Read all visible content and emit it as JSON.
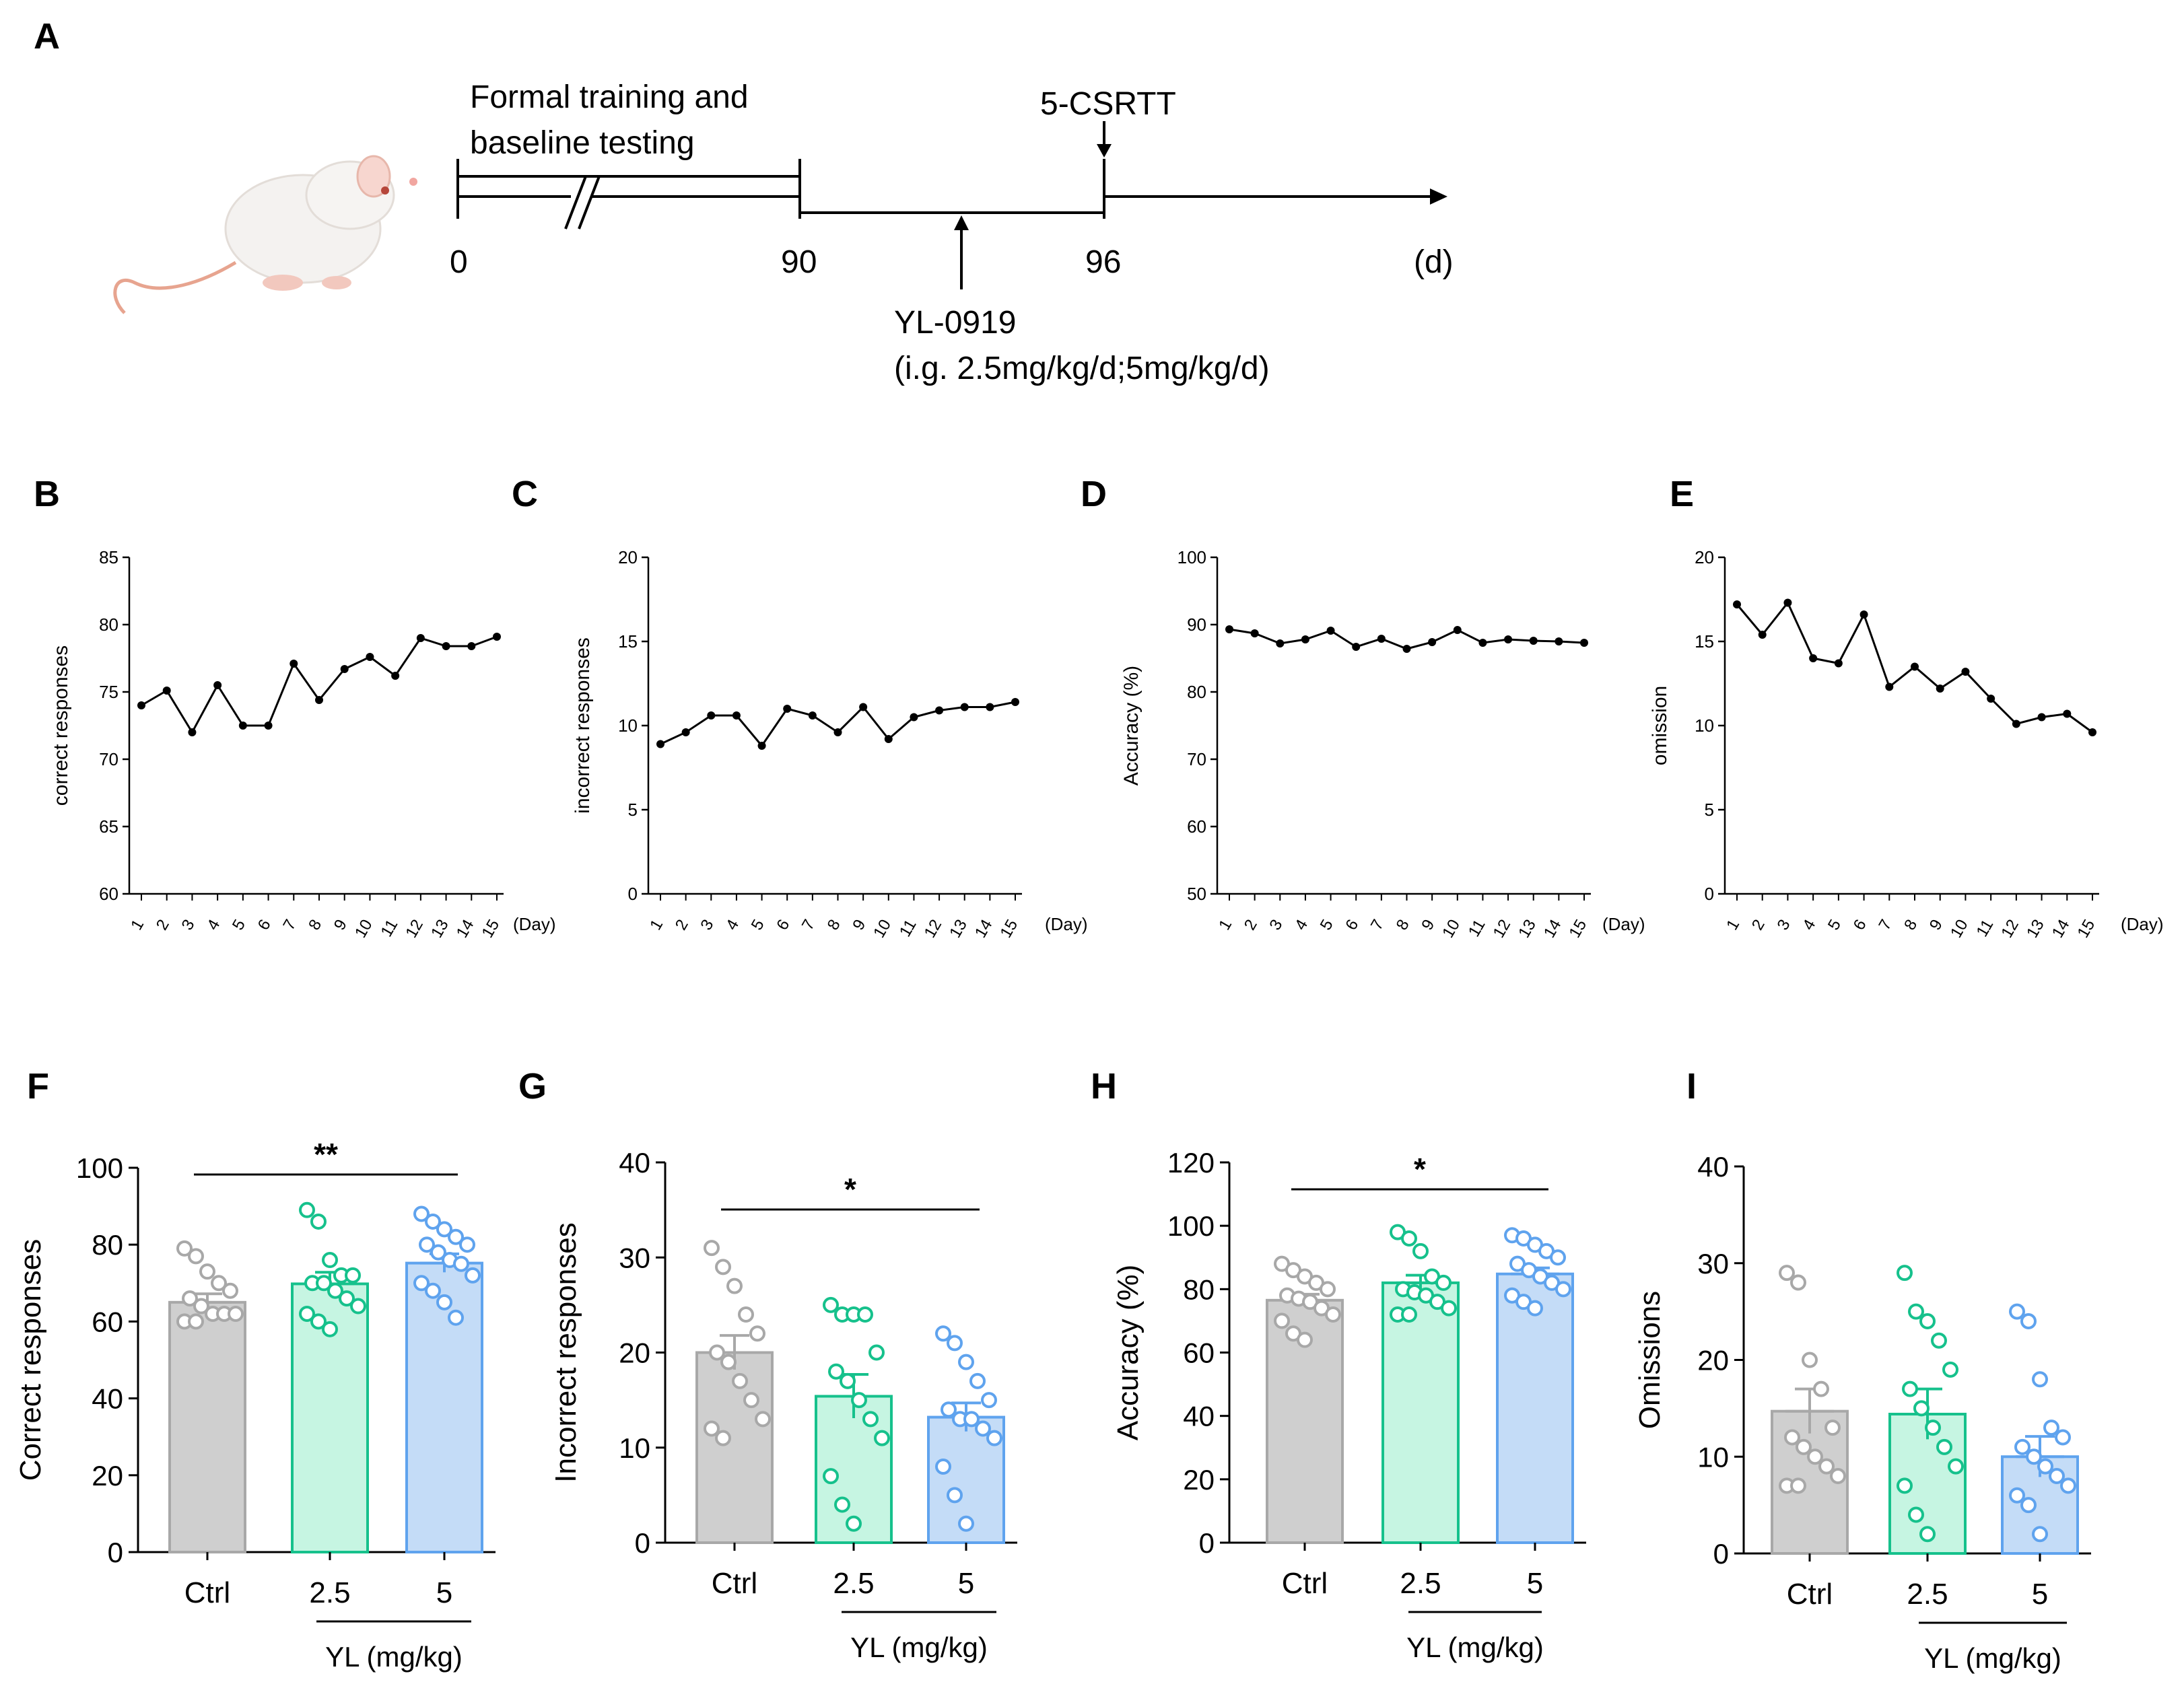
{
  "timeline": {
    "panel_label": "A",
    "phase_label_line1": "Formal training and",
    "phase_label_line2": "baseline testing",
    "test_label": "5-CSRTT",
    "tick_0": "0",
    "tick_90": "90",
    "tick_96": "96",
    "unit": "(d)",
    "drug_label": "YL-0919",
    "drug_dose": "(i.g. 2.5mg/kg/d;5mg/kg/d)"
  },
  "chart_data": [
    {
      "panel": "B",
      "type": "line",
      "ylabel": "correct responses",
      "xlabel": "(Day)",
      "x": [
        1,
        2,
        3,
        4,
        5,
        6,
        7,
        8,
        9,
        10,
        11,
        12,
        13,
        14,
        15
      ],
      "values": [
        74.0,
        75.1,
        72.0,
        75.5,
        72.5,
        72.5,
        77.1,
        74.4,
        76.7,
        77.6,
        76.2,
        79.0,
        78.4,
        78.4,
        79.1
      ],
      "ylim": [
        60,
        85
      ],
      "yticks": [
        "60",
        "65",
        "70",
        "75",
        "80",
        "85"
      ]
    },
    {
      "panel": "C",
      "type": "line",
      "ylabel": "incorrect responses",
      "xlabel": "(Day)",
      "x": [
        1,
        2,
        3,
        4,
        5,
        6,
        7,
        8,
        9,
        10,
        11,
        12,
        13,
        14,
        15
      ],
      "values": [
        8.9,
        9.6,
        10.6,
        10.6,
        8.8,
        11.0,
        10.6,
        9.6,
        11.1,
        9.2,
        10.5,
        10.9,
        11.1,
        11.1,
        11.4
      ],
      "ylim": [
        0,
        20
      ],
      "yticks": [
        "0",
        "5",
        "10",
        "15",
        "20"
      ]
    },
    {
      "panel": "D",
      "type": "line",
      "ylabel": "Accuracy (%)",
      "xlabel": "(Day)",
      "x": [
        1,
        2,
        3,
        4,
        5,
        6,
        7,
        8,
        9,
        10,
        11,
        12,
        13,
        14,
        15
      ],
      "values": [
        89.3,
        88.7,
        87.2,
        87.8,
        89.1,
        86.7,
        87.9,
        86.4,
        87.4,
        89.2,
        87.3,
        87.8,
        87.6,
        87.5,
        87.3
      ],
      "ylim": [
        50,
        100
      ],
      "yticks": [
        "50",
        "60",
        "70",
        "80",
        "90",
        "100"
      ]
    },
    {
      "panel": "E",
      "type": "line",
      "ylabel": "omission",
      "xlabel": "(Day)",
      "x": [
        1,
        2,
        3,
        4,
        5,
        6,
        7,
        8,
        9,
        10,
        11,
        12,
        13,
        14,
        15
      ],
      "values": [
        17.2,
        15.4,
        17.3,
        14.0,
        13.7,
        16.6,
        12.3,
        13.5,
        12.2,
        13.2,
        11.6,
        10.1,
        10.5,
        10.7,
        9.6
      ],
      "ylim": [
        0,
        20
      ],
      "yticks": [
        "0",
        "5",
        "10",
        "15",
        "20"
      ]
    },
    {
      "panel": "F",
      "type": "bar",
      "ylabel": "Correct responses",
      "xlabel": "YL (mg/kg)",
      "categories": [
        "Ctrl",
        "2.5",
        "5"
      ],
      "values": [
        65.0,
        69.8,
        75.2
      ],
      "sem": [
        2.2,
        3.0,
        2.4
      ],
      "points": [
        [
          79,
          77,
          73,
          70,
          68,
          66,
          64,
          62,
          62,
          62,
          60,
          60
        ],
        [
          89,
          86,
          76,
          72,
          72,
          70,
          70,
          68,
          66,
          64,
          62,
          60,
          58
        ],
        [
          88,
          86,
          84,
          82,
          80,
          80,
          78,
          76,
          75,
          72,
          70,
          68,
          65,
          61
        ]
      ],
      "ylim": [
        0,
        100
      ],
      "yticks": [
        "0",
        "20",
        "40",
        "60",
        "80",
        "100"
      ],
      "significance": "**"
    },
    {
      "panel": "G",
      "type": "bar",
      "ylabel": "Incorrect responses",
      "xlabel": "YL (mg/kg)",
      "categories": [
        "Ctrl",
        "2.5",
        "5"
      ],
      "values": [
        20.0,
        15.4,
        13.2
      ],
      "sem": [
        1.8,
        2.3,
        1.5
      ],
      "points": [
        [
          31,
          29,
          27,
          24,
          22,
          20,
          19,
          17,
          15,
          13,
          12,
          11
        ],
        [
          25,
          24,
          24,
          24,
          20,
          18,
          17,
          15,
          13,
          11,
          7,
          4,
          2
        ],
        [
          22,
          21,
          19,
          17,
          15,
          14,
          13,
          13,
          12,
          11,
          8,
          5,
          2
        ]
      ],
      "ylim": [
        0,
        40
      ],
      "yticks": [
        "0",
        "10",
        "20",
        "30",
        "40"
      ],
      "significance": "*"
    },
    {
      "panel": "H",
      "type": "bar",
      "ylabel": "Accuracy (%)",
      "xlabel": "YL (mg/kg)",
      "categories": [
        "Ctrl",
        "2.5",
        "5"
      ],
      "values": [
        76.5,
        82.0,
        84.8
      ],
      "sem": [
        1.9,
        2.4,
        1.9
      ],
      "points": [
        [
          88,
          86,
          84,
          82,
          80,
          78,
          77,
          76,
          74,
          72,
          70,
          66,
          64
        ],
        [
          98,
          96,
          92,
          84,
          82,
          80,
          79,
          78,
          76,
          74,
          72,
          72
        ],
        [
          97,
          96,
          94,
          92,
          90,
          88,
          86,
          84,
          82,
          80,
          78,
          76,
          74
        ]
      ],
      "ylim": [
        0,
        120
      ],
      "yticks": [
        "0",
        "20",
        "40",
        "60",
        "80",
        "100",
        "120"
      ],
      "significance": "*"
    },
    {
      "panel": "I",
      "type": "bar",
      "ylabel": "Omissions",
      "xlabel": "YL (mg/kg)",
      "categories": [
        "Ctrl",
        "2.5",
        "5"
      ],
      "values": [
        14.7,
        14.4,
        10.0
      ],
      "sem": [
        2.3,
        2.6,
        2.1
      ],
      "points": [
        [
          29,
          28,
          20,
          17,
          13,
          12,
          11,
          10,
          9,
          8,
          7,
          7
        ],
        [
          29,
          25,
          24,
          22,
          19,
          17,
          15,
          13,
          11,
          9,
          7,
          4,
          2
        ],
        [
          25,
          24,
          18,
          13,
          12,
          11,
          10,
          9,
          8,
          7,
          6,
          5,
          2
        ]
      ],
      "ylim": [
        0,
        40
      ],
      "yticks": [
        "0",
        "10",
        "20",
        "30",
        "40"
      ]
    }
  ],
  "colors": {
    "ctrl_fill": "#cfcfcf",
    "ctrl_stroke": "#a8a8a8",
    "mid_fill": "#c6f5e2",
    "mid_stroke": "#16c18c",
    "high_fill": "#c4dcf7",
    "high_stroke": "#5fa3ee"
  }
}
